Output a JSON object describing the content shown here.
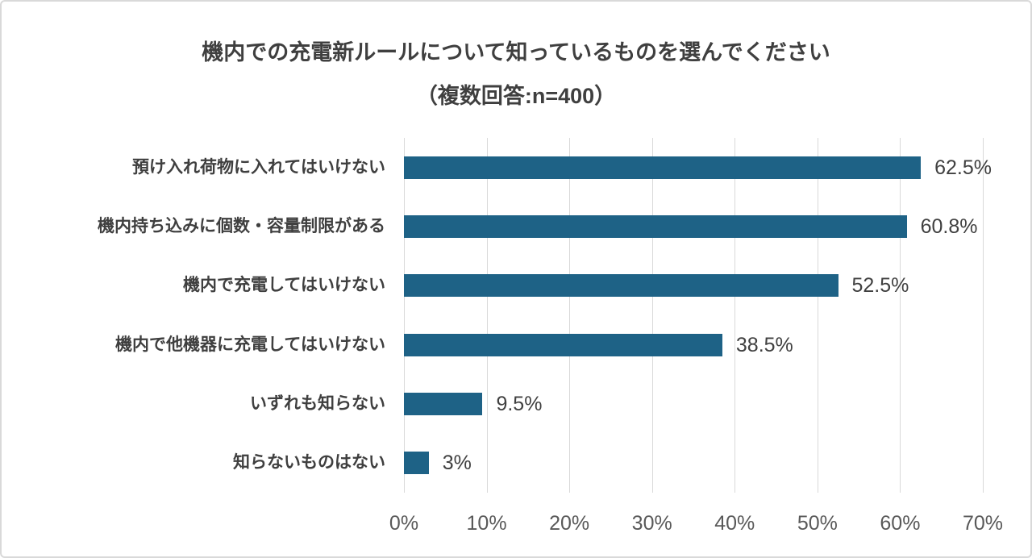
{
  "chart_data": {
    "type": "bar",
    "orientation": "horizontal",
    "title": "機内での充電新ルールについて知っているものを選んでください（複数回答:n=400）",
    "title_line1": "機内での充電新ルールについて知っているものを選んでください",
    "title_line2": "（複数回答:n=400）",
    "categories": [
      "預け入れ荷物に入れてはいけない",
      "機内持ち込みに個数・容量制限がある",
      "機内で充電してはいけない",
      "機内で他機器に充電してはいけない",
      "いずれも知らない",
      "知らないものはない"
    ],
    "values": [
      62.5,
      60.8,
      52.5,
      38.5,
      9.5,
      3
    ],
    "value_labels": [
      "62.5%",
      "60.8%",
      "52.5%",
      "38.5%",
      "9.5%",
      "3%"
    ],
    "x_tick_labels": [
      "0%",
      "10%",
      "20%",
      "30%",
      "40%",
      "50%",
      "60%",
      "70%"
    ],
    "x_tick_values": [
      0,
      10,
      20,
      30,
      40,
      50,
      60,
      70
    ],
    "xlim": [
      0,
      70
    ],
    "grid": true,
    "legend_position": "none",
    "colors": {
      "bar": "#1e6286",
      "gridline": "#d9d9d9",
      "title_text": "#3f3f3f",
      "category_text": "#3f3f3f",
      "value_text": "#404040",
      "tick_text": "#595959",
      "frame_border": "#d9d9d9",
      "background": "#ffffff"
    }
  }
}
